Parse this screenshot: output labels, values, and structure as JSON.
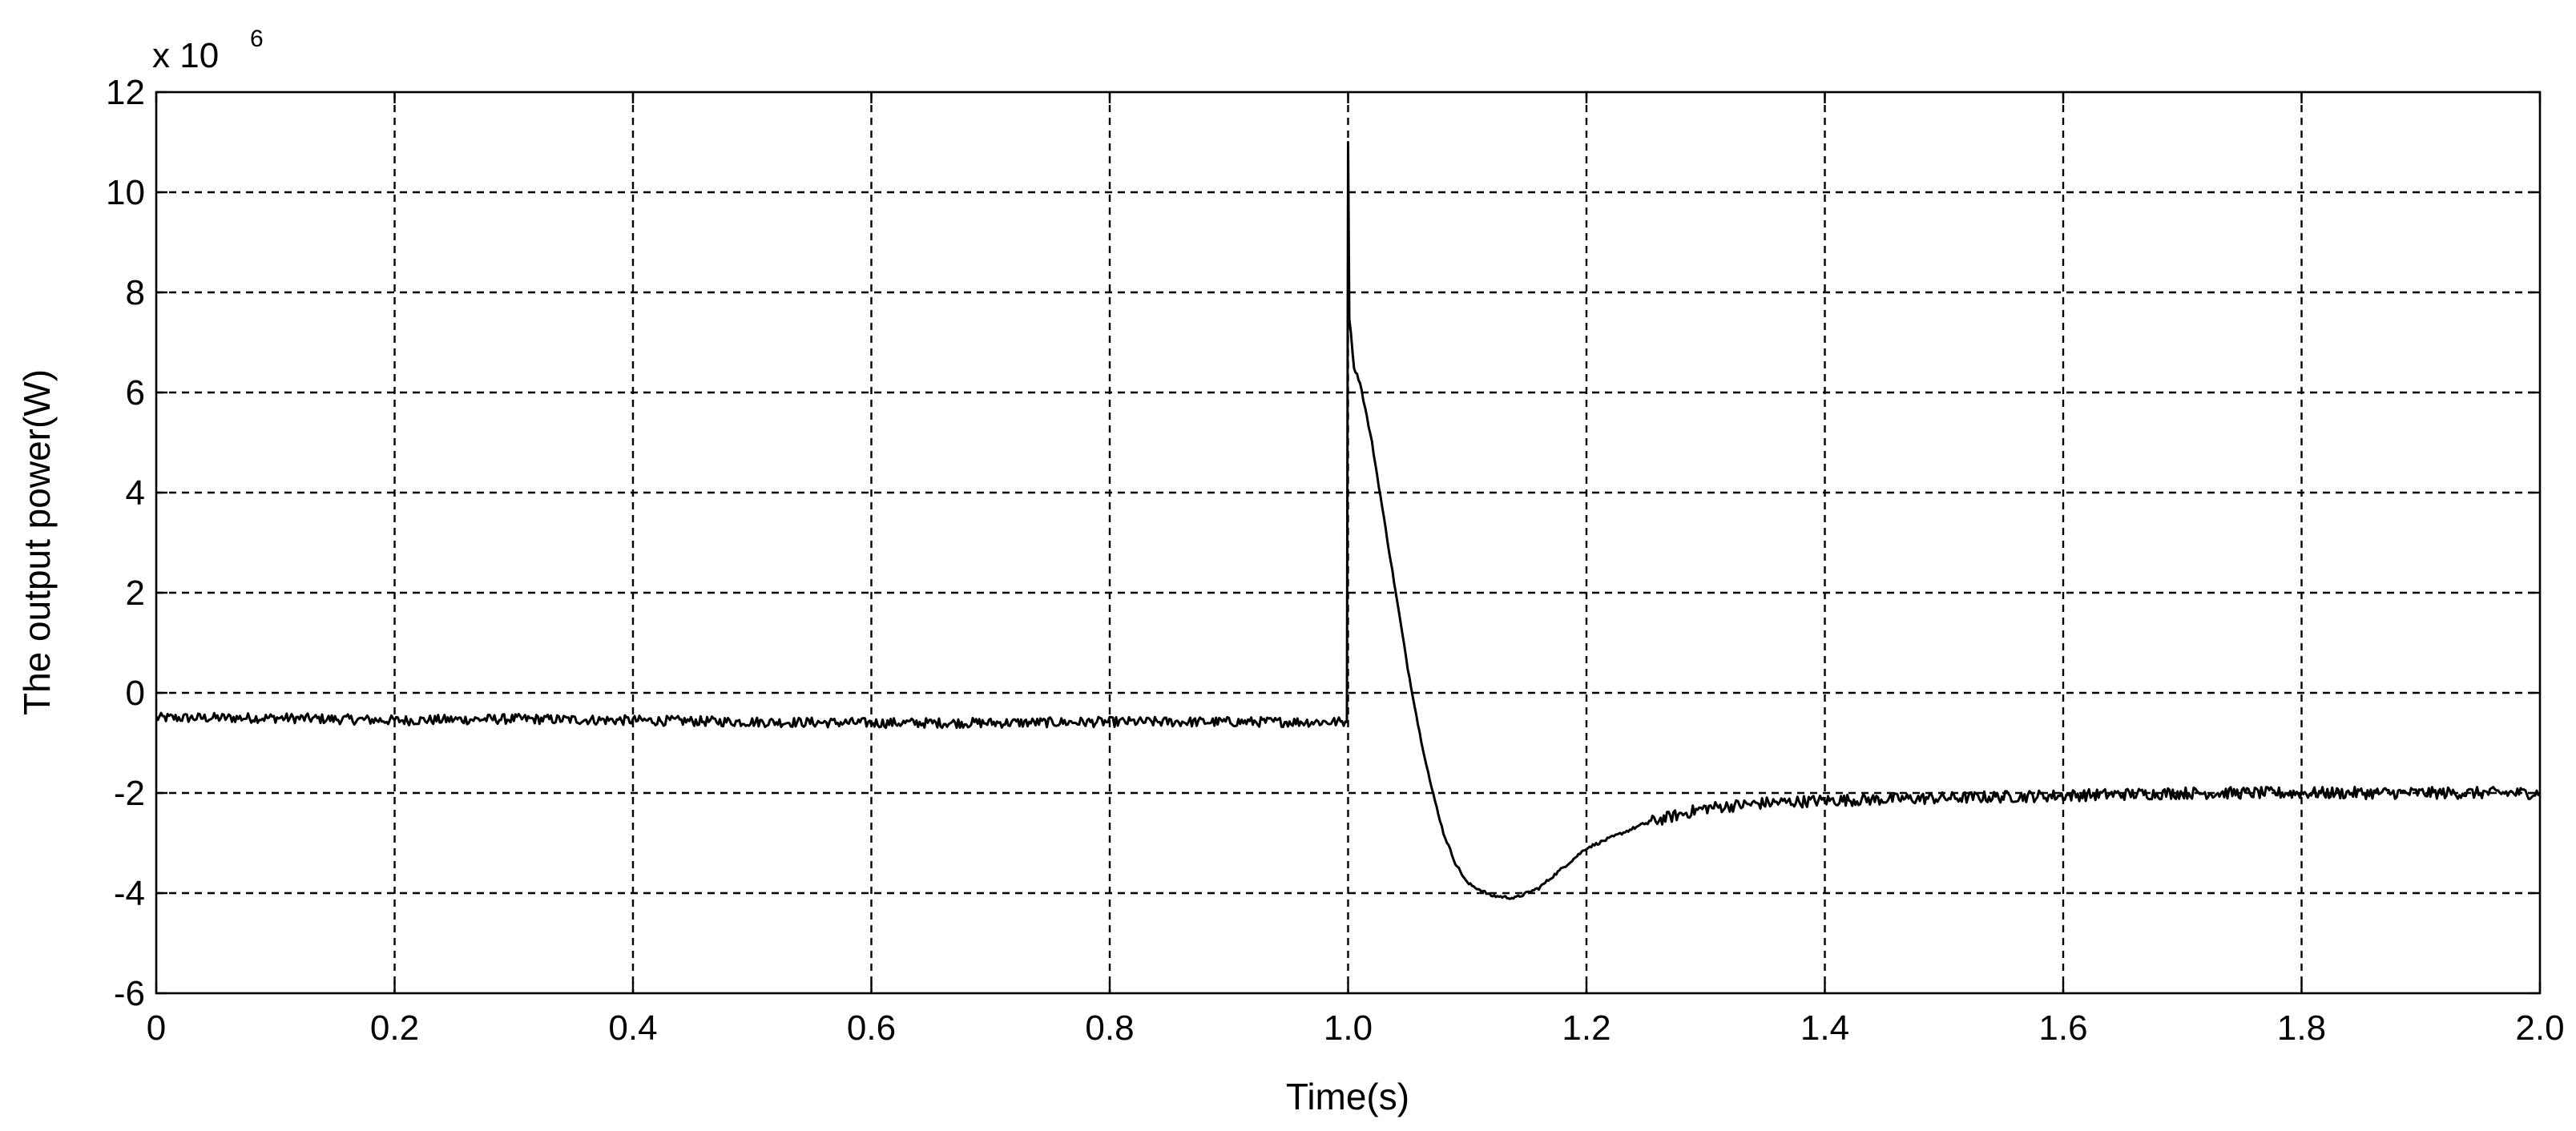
{
  "chart_data": {
    "type": "line",
    "title": "",
    "xlabel": "Time(s)",
    "ylabel": "The output power(W)",
    "y_multiplier_label": "x 10",
    "y_multiplier_exponent": "6",
    "xlim": [
      0,
      2.0
    ],
    "ylim": [
      -6,
      12
    ],
    "grid": true,
    "legend": "none",
    "x_ticks": [
      "0",
      "0.2",
      "0.4",
      "0.6",
      "0.8",
      "1.0",
      "1.2",
      "1.4",
      "1.6",
      "1.8",
      "2.0"
    ],
    "y_ticks": [
      "12",
      "10",
      "8",
      "6",
      "4",
      "2",
      "0",
      "-2",
      "-4",
      "-6"
    ],
    "series": [
      {
        "color": "#000000",
        "x": [
          0,
          0.1,
          0.2,
          0.3,
          0.4,
          0.5,
          0.6,
          0.7,
          0.8,
          0.9,
          0.999,
          1.0,
          1.001,
          1.005,
          1.01,
          1.02,
          1.03,
          1.04,
          1.05,
          1.06,
          1.07,
          1.08,
          1.09,
          1.1,
          1.12,
          1.14,
          1.16,
          1.18,
          1.2,
          1.25,
          1.3,
          1.35,
          1.4,
          1.5,
          1.6,
          1.7,
          1.8,
          1.9,
          2.0
        ],
        "y": [
          -0.5,
          -0.5,
          -0.55,
          -0.52,
          -0.55,
          -0.58,
          -0.6,
          -0.6,
          -0.58,
          -0.58,
          -0.58,
          11.0,
          7.5,
          6.5,
          6.2,
          5.0,
          3.5,
          2.0,
          0.5,
          -0.8,
          -1.9,
          -2.8,
          -3.4,
          -3.8,
          -4.05,
          -4.1,
          -3.9,
          -3.5,
          -3.1,
          -2.6,
          -2.3,
          -2.2,
          -2.15,
          -2.1,
          -2.05,
          -2.0,
          -2.0,
          -2.0,
          -2.0
        ]
      }
    ]
  }
}
